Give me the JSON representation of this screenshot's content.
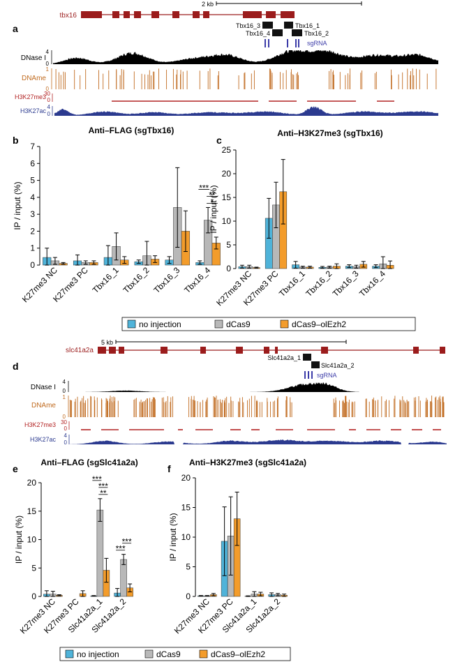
{
  "panels": {
    "a": "a",
    "b": "b",
    "c": "c",
    "d": "d",
    "e": "e",
    "f": "f"
  },
  "colors": {
    "no_injection": "#4fb3d9",
    "dCas9": "#b8b8b8",
    "dCas9_olEzh2": "#f39c2b",
    "gene": "#9b1c1c",
    "dnase": "#000000",
    "dname": "#c06a1e",
    "h3k27me3": "#b22222",
    "h3k27ac": "#2b3a8f",
    "sgrna": "#3b3ba8"
  },
  "legend": {
    "items": [
      "no injection",
      "dCas9",
      "dCas9–olEzh2"
    ]
  },
  "tracks": {
    "tbx16": {
      "gene": "tbx16",
      "scale_label": "2 kb",
      "targets": [
        "Tbx16_3",
        "Tbx16_1",
        "Tbx16_4",
        "Tbx16_2"
      ],
      "sgrna_label": "sgRNA",
      "labels": [
        "DNase I",
        "DNAme",
        "H3K27me3",
        "H3K27ac"
      ],
      "ticks": {
        "dnase": [
          "4",
          "0"
        ],
        "dname": [
          "1",
          "0"
        ],
        "h3k27me3": [
          "30",
          "0"
        ],
        "h3k27ac": [
          "4",
          "0"
        ]
      }
    },
    "slc41a2a": {
      "gene": "slc41a2a",
      "scale_label": "5 kb",
      "targets": [
        "Slc41a2a_1",
        "Slc41a2a_2"
      ],
      "sgrna_label": "sgRNA",
      "labels": [
        "DNase I",
        "DNAme",
        "H3K27me3",
        "H3K27ac"
      ],
      "ticks": {
        "dnase": [
          "4",
          "0"
        ],
        "dname": [
          "1",
          "0"
        ],
        "h3k27me3": [
          "30",
          "0"
        ],
        "h3k27ac": [
          "4",
          "0"
        ]
      }
    }
  },
  "chart_data": [
    {
      "id": "b",
      "type": "bar",
      "title": "Anti–FLAG (sgTbx16)",
      "ylabel": "IP / input (%)",
      "ylim": [
        0,
        7
      ],
      "yticks": [
        0,
        1,
        2,
        3,
        4,
        5,
        6,
        7
      ],
      "categories": [
        "K27me3 NC",
        "K27me3 PC",
        "Tbx16_1",
        "Tbx16_2",
        "Tbx16_3",
        "Tbx16_4"
      ],
      "series": [
        {
          "name": "no injection",
          "values": [
            0.45,
            0.25,
            0.45,
            0.2,
            0.3,
            0.15
          ],
          "errors": [
            0.55,
            0.35,
            0.7,
            0.1,
            0.2,
            0.1
          ]
        },
        {
          "name": "dCas9",
          "values": [
            0.25,
            0.15,
            1.1,
            0.55,
            3.4,
            2.65
          ],
          "errors": [
            0.2,
            0.1,
            0.8,
            0.85,
            2.35,
            0.75
          ]
        },
        {
          "name": "dCas9–olEzh2",
          "values": [
            0.1,
            0.15,
            0.3,
            0.35,
            2.0,
            1.3
          ],
          "errors": [
            0.05,
            0.1,
            0.2,
            0.2,
            1.2,
            0.35
          ]
        }
      ],
      "significance": [
        {
          "label": "*",
          "category": 5,
          "from": 1,
          "to": 2
        },
        {
          "label": "**",
          "category": 5,
          "from": 1,
          "to": 2
        },
        {
          "label": "***",
          "category": 5,
          "from": 0,
          "to": 1
        }
      ]
    },
    {
      "id": "c",
      "type": "bar",
      "title": "Anti–H3K27me3 (sgTbx16)",
      "ylabel": "IP / input (%)",
      "ylim": [
        0,
        25
      ],
      "yticks": [
        0,
        5,
        10,
        15,
        20,
        25
      ],
      "categories": [
        "K27me3 NC",
        "K27me3 PC",
        "Tbx16_1",
        "Tbx16_2",
        "Tbx16_3",
        "Tbx16_4"
      ],
      "series": [
        {
          "name": "no injection",
          "values": [
            0.4,
            10.6,
            0.8,
            0.25,
            0.5,
            0.5
          ],
          "errors": [
            0.3,
            4.2,
            0.7,
            0.2,
            0.3,
            0.3
          ]
        },
        {
          "name": "dCas9",
          "values": [
            0.4,
            13.4,
            0.3,
            0.3,
            0.4,
            1.0
          ],
          "errors": [
            0.3,
            4.8,
            0.2,
            0.2,
            0.3,
            1.5
          ]
        },
        {
          "name": "dCas9–olEzh2",
          "values": [
            0.2,
            16.2,
            0.3,
            0.5,
            0.9,
            0.7
          ],
          "errors": [
            0.1,
            6.8,
            0.2,
            0.5,
            0.6,
            0.9
          ]
        }
      ]
    },
    {
      "id": "e",
      "type": "bar",
      "title": "Anti–FLAG (sgSlc41a2a)",
      "ylabel": "IP / input (%)",
      "ylim": [
        0,
        20
      ],
      "yticks": [
        0,
        5,
        10,
        15,
        20
      ],
      "categories": [
        "K27me3 NC",
        "K27me3 PC",
        "Slc41a2a_1",
        "Slc41a2a_2"
      ],
      "series": [
        {
          "name": "no injection",
          "values": [
            0.4,
            0.0,
            0.1,
            0.6
          ],
          "errors": [
            0.6,
            0.0,
            0.05,
            0.8
          ]
        },
        {
          "name": "dCas9",
          "values": [
            0.4,
            0.0,
            15.2,
            6.5
          ],
          "errors": [
            0.5,
            0.0,
            2.0,
            0.9
          ]
        },
        {
          "name": "dCas9–olEzh2",
          "values": [
            0.2,
            0.5,
            4.6,
            1.5
          ],
          "errors": [
            0.1,
            0.5,
            2.1,
            0.7
          ]
        }
      ],
      "significance": [
        {
          "label": "**",
          "category": 2,
          "from": 1,
          "to": 2
        },
        {
          "label": "***",
          "category": 2,
          "from": 1,
          "to": 2
        },
        {
          "label": "***",
          "category": 2,
          "from": 0,
          "to": 1
        },
        {
          "label": "***",
          "category": 3,
          "from": 0,
          "to": 1
        },
        {
          "label": "***",
          "category": 3,
          "from": 1,
          "to": 2
        }
      ]
    },
    {
      "id": "f",
      "type": "bar",
      "title": "Anti–H3K27me3 (sgSlc41a2a)",
      "ylabel": "IP / input (%)",
      "ylim": [
        0,
        20
      ],
      "yticks": [
        0,
        5,
        10,
        15,
        20
      ],
      "categories": [
        "K27me3 NC",
        "K27me3 PC",
        "Slc41a2a_1",
        "Slc41a2a_2"
      ],
      "series": [
        {
          "name": "no injection",
          "values": [
            0.1,
            9.3,
            0.05,
            0.3
          ],
          "errors": [
            0.05,
            5.8,
            0.05,
            0.3
          ]
        },
        {
          "name": "dCas9",
          "values": [
            0.1,
            10.2,
            0.4,
            0.3
          ],
          "errors": [
            0.05,
            6.6,
            0.4,
            0.2
          ]
        },
        {
          "name": "dCas9–olEzh2",
          "values": [
            0.3,
            13.1,
            0.4,
            0.2
          ],
          "errors": [
            0.2,
            4.5,
            0.3,
            0.2
          ]
        }
      ]
    }
  ]
}
